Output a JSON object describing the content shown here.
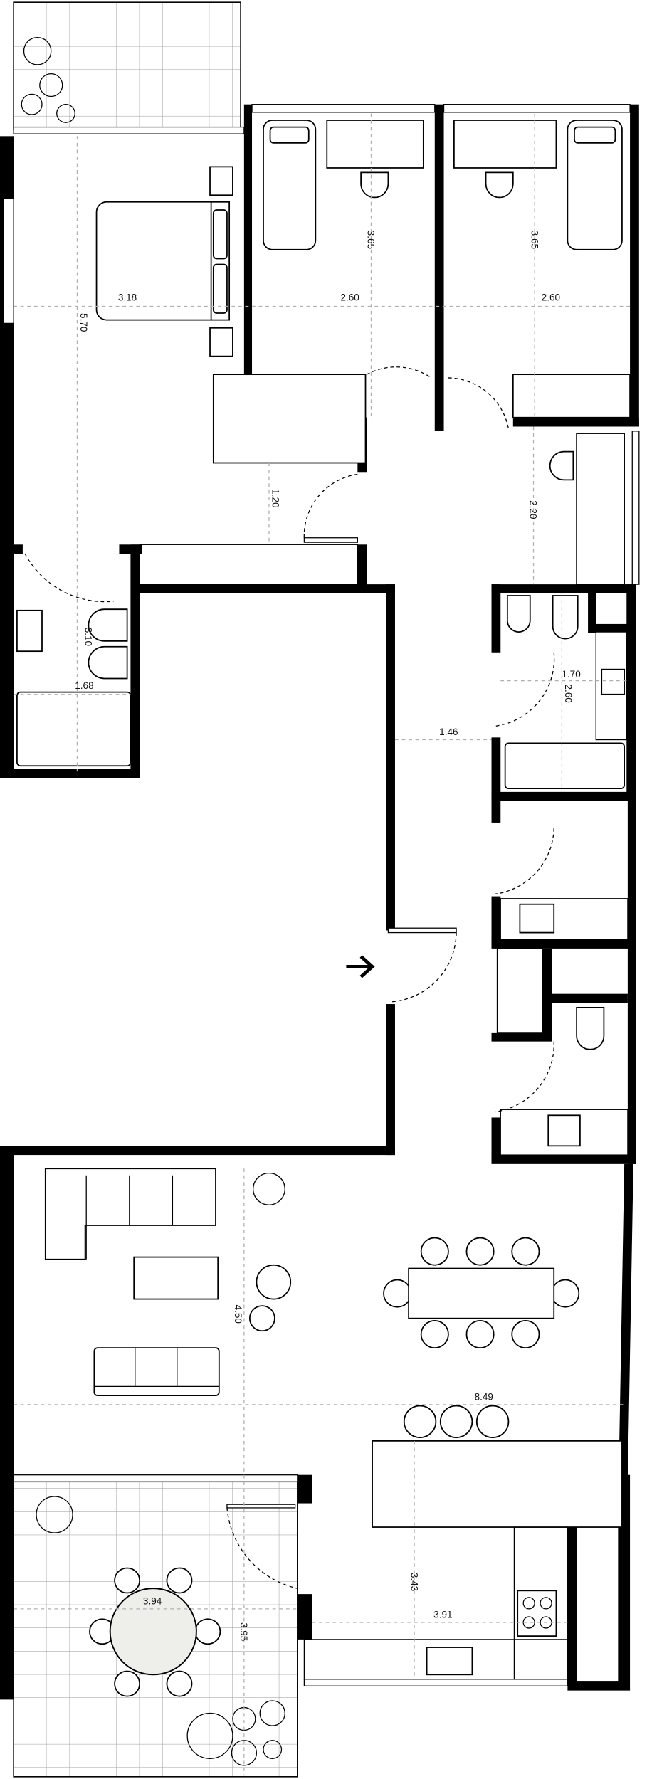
{
  "plan": {
    "entrance_icon": "arrow-right-icon",
    "table_fill": "#eeeeea",
    "dimensions": {
      "master_bedroom_width": "3.18",
      "master_bedroom_length": "5.70",
      "bedroom2_width": "2.60",
      "bedroom2_length": "3.65",
      "bedroom3_width": "2.60",
      "bedroom3_length": "3.65",
      "master_closet": "1.20",
      "hall_study": "2.20",
      "master_bath_length": "3.10",
      "master_bath_width": "1.68",
      "bath_width": "1.70",
      "bath_length": "2.60",
      "corridor_width": "1.46",
      "living_depth": "4.50",
      "living_width": "8.49",
      "kitchen_depth": "3.43",
      "kitchen_width": "3.91",
      "terrace_width": "3.94",
      "terrace_depth": "3.95"
    }
  }
}
